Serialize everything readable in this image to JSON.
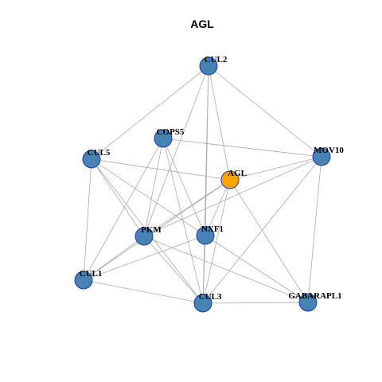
{
  "title": "AGL",
  "nodes": [
    {
      "label": "CUL2"
    },
    {
      "label": "COPS5"
    },
    {
      "label": "CUL5"
    },
    {
      "label": "MOV10"
    },
    {
      "label": "AGL"
    },
    {
      "label": "PKM"
    },
    {
      "label": "NXF1"
    },
    {
      "label": "CUL1"
    },
    {
      "label": "CUL3"
    },
    {
      "label": "GABARAPL1"
    }
  ]
}
